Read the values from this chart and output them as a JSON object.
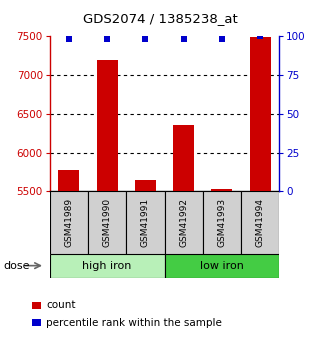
{
  "title": "GDS2074 / 1385238_at",
  "samples": [
    "GSM41989",
    "GSM41990",
    "GSM41991",
    "GSM41992",
    "GSM41993",
    "GSM41994"
  ],
  "counts": [
    5780,
    7190,
    5650,
    6360,
    5530,
    7490
  ],
  "percentile_ranks": [
    98,
    98,
    98,
    98,
    98,
    100
  ],
  "ylim_left": [
    5500,
    7500
  ],
  "ylim_right": [
    0,
    100
  ],
  "yticks_left": [
    5500,
    6000,
    6500,
    7000,
    7500
  ],
  "yticks_right": [
    0,
    25,
    50,
    75,
    100
  ],
  "groups": [
    {
      "label": "high iron",
      "indices": [
        0,
        1,
        2
      ],
      "color": "#b8f0b8"
    },
    {
      "label": "low iron",
      "indices": [
        3,
        4,
        5
      ],
      "color": "#44cc44"
    }
  ],
  "bar_color": "#cc0000",
  "percentile_color": "#0000cc",
  "sample_box_color": "#d0d0d0",
  "grid_color": "#000000",
  "title_color": "#000000",
  "left_axis_color": "#cc0000",
  "right_axis_color": "#0000cc",
  "dose_label": "dose",
  "legend_count_label": "count",
  "legend_percentile_label": "percentile rank within the sample",
  "grid_yticks": [
    6000,
    6500,
    7000
  ]
}
